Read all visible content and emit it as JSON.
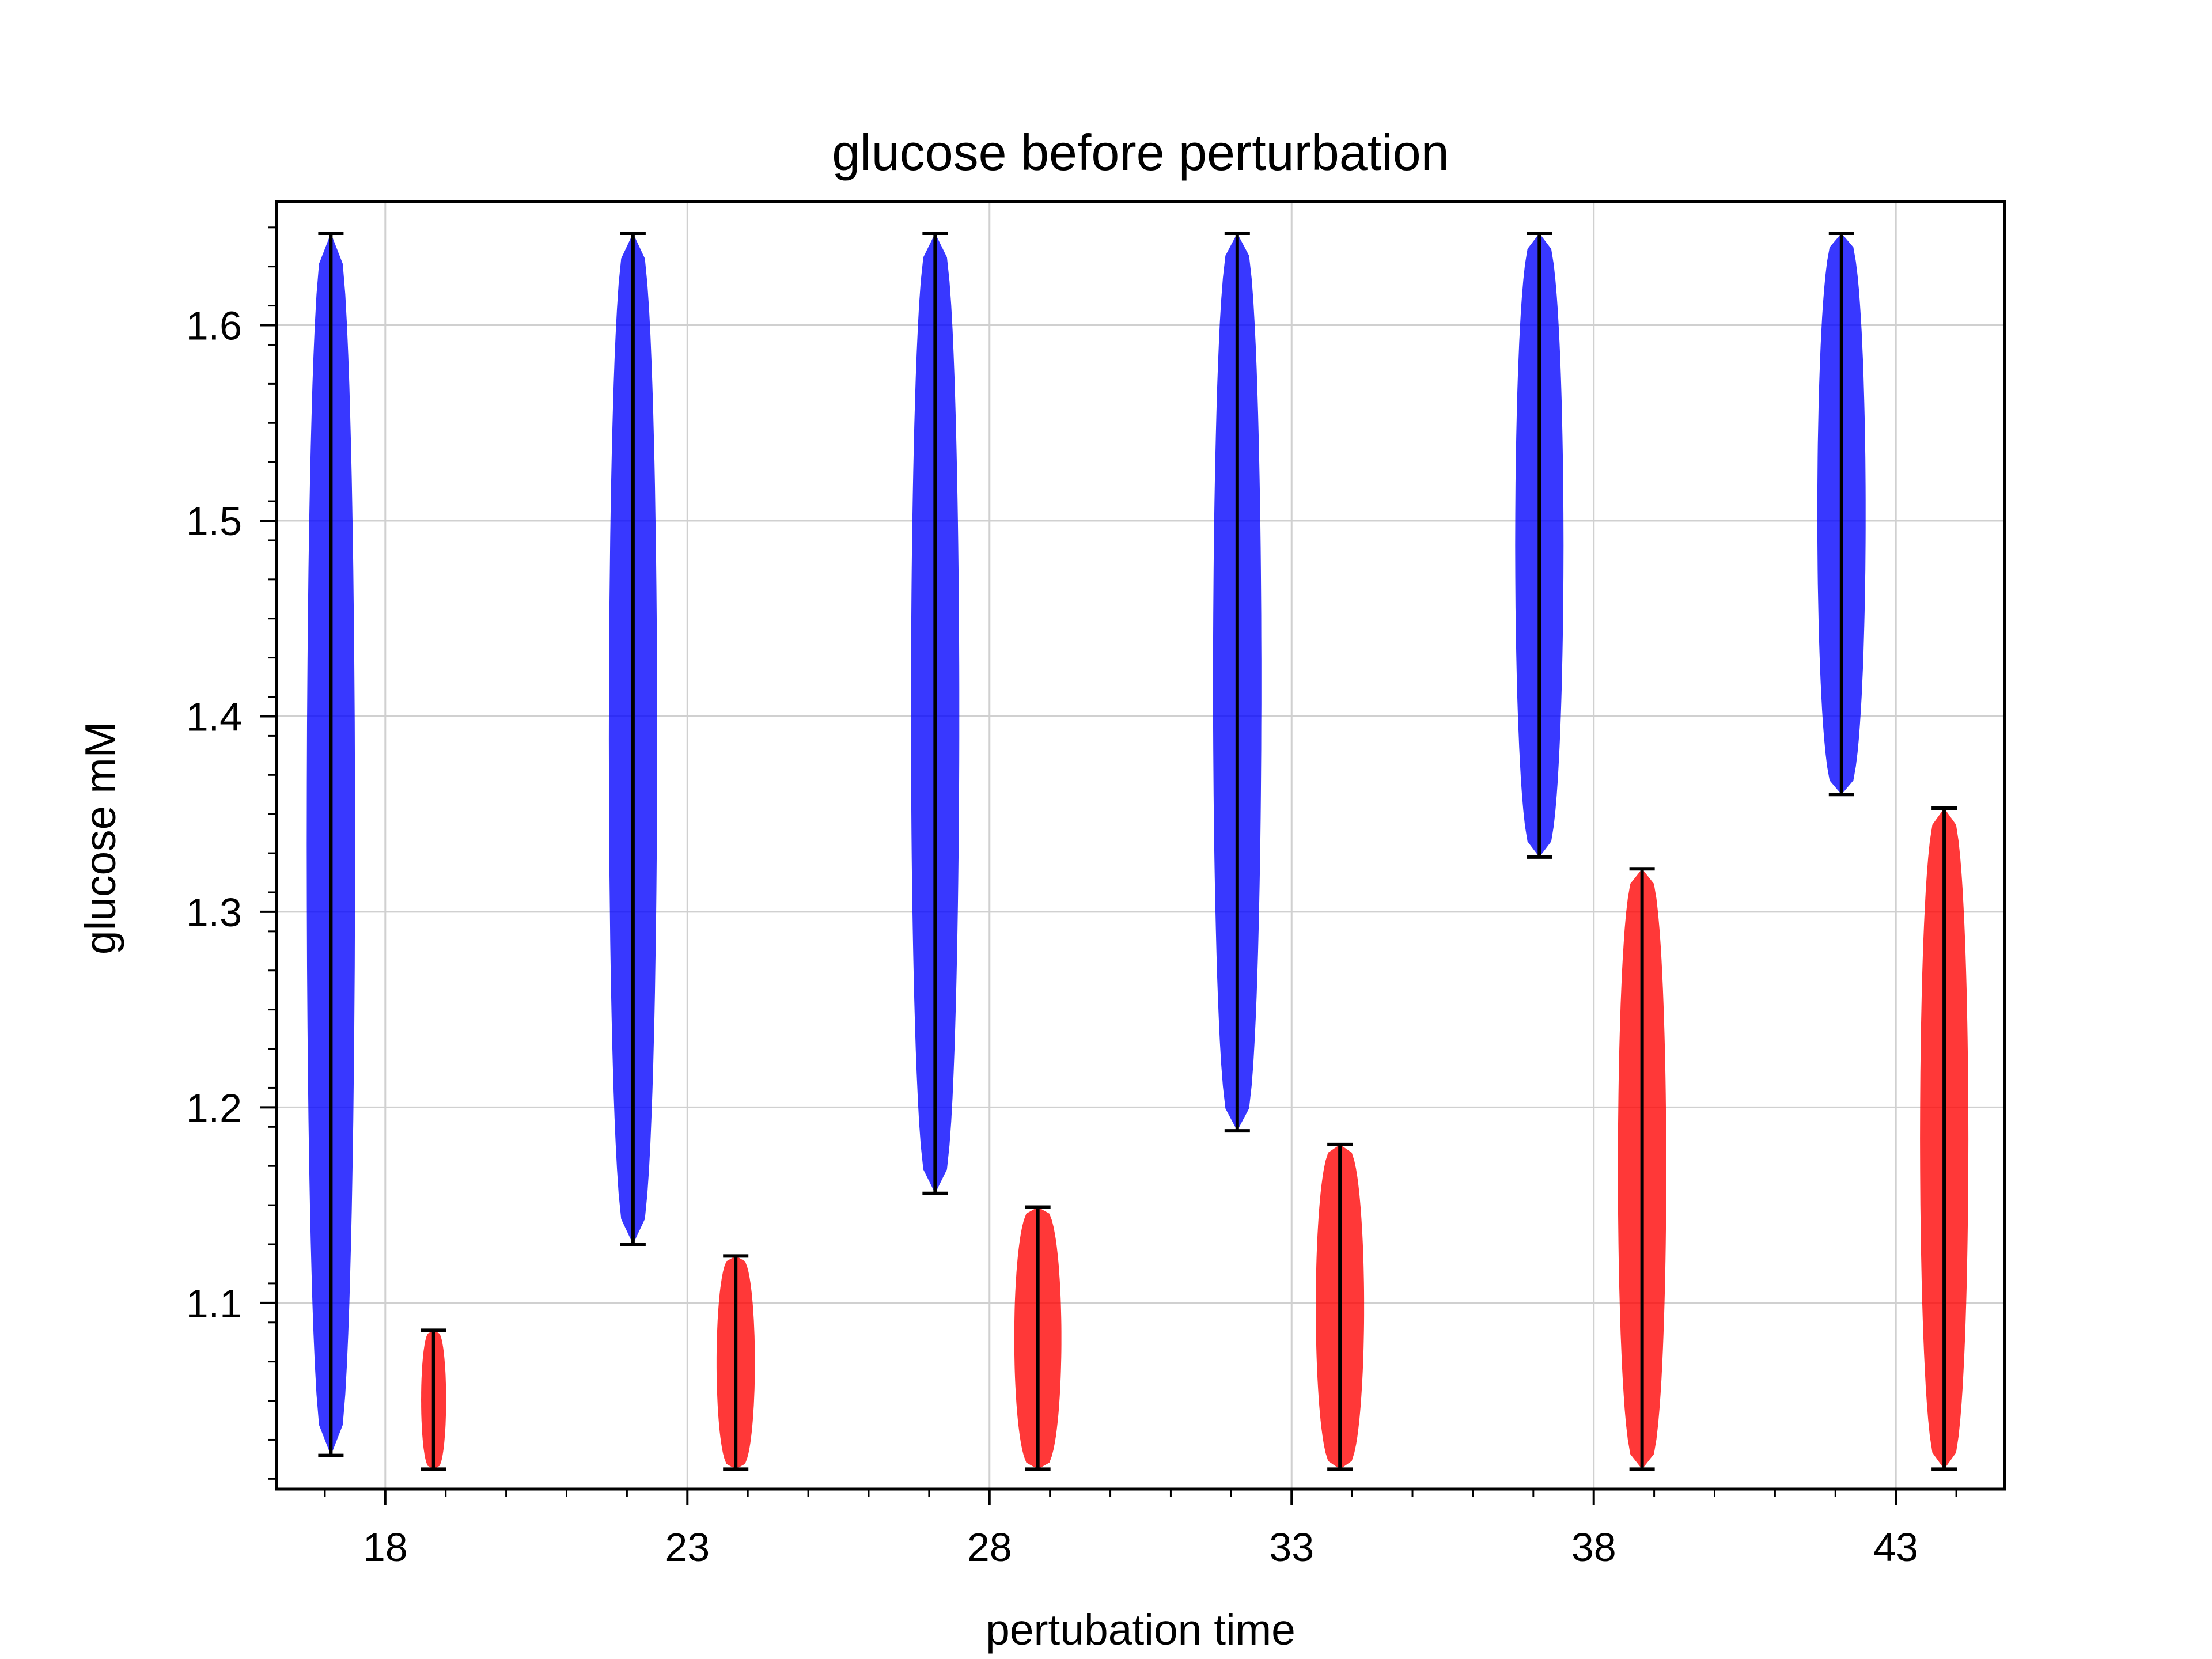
{
  "chart_data": {
    "type": "violin",
    "title": "glucose before perturbation",
    "xlabel": "pertubation time",
    "ylabel": "glucose mM",
    "xlim": [
      16.2,
      44.8
    ],
    "ylim": [
      1.0048,
      1.6632
    ],
    "xticks": [
      18,
      23,
      28,
      33,
      38,
      43
    ],
    "xtick_labels": [
      "18",
      "23",
      "28",
      "33",
      "38",
      "43"
    ],
    "yticks": [
      1.1,
      1.2,
      1.3,
      1.4,
      1.5,
      1.6
    ],
    "ytick_labels": [
      "1.1",
      "1.2",
      "1.3",
      "1.4",
      "1.5",
      "1.6"
    ],
    "grid": true,
    "colors": {
      "blue": "#0000ff",
      "red": "#ff0000",
      "frame": "#000000",
      "grid": "#d0d0d0"
    },
    "series": [
      {
        "color": "blue",
        "violins": [
          {
            "x": 17.1,
            "min": 1.022,
            "max": 1.647
          },
          {
            "x": 22.1,
            "min": 1.13,
            "max": 1.647
          },
          {
            "x": 27.1,
            "min": 1.156,
            "max": 1.647
          },
          {
            "x": 32.1,
            "min": 1.188,
            "max": 1.647
          },
          {
            "x": 37.1,
            "min": 1.328,
            "max": 1.647
          },
          {
            "x": 42.1,
            "min": 1.36,
            "max": 1.647
          }
        ]
      },
      {
        "color": "red",
        "violins": [
          {
            "x": 18.8,
            "min": 1.015,
            "max": 1.086
          },
          {
            "x": 23.8,
            "min": 1.015,
            "max": 1.124
          },
          {
            "x": 28.8,
            "min": 1.015,
            "max": 1.149
          },
          {
            "x": 33.8,
            "min": 1.015,
            "max": 1.181
          },
          {
            "x": 38.8,
            "min": 1.015,
            "max": 1.322
          },
          {
            "x": 43.8,
            "min": 1.015,
            "max": 1.353
          }
        ]
      }
    ]
  }
}
